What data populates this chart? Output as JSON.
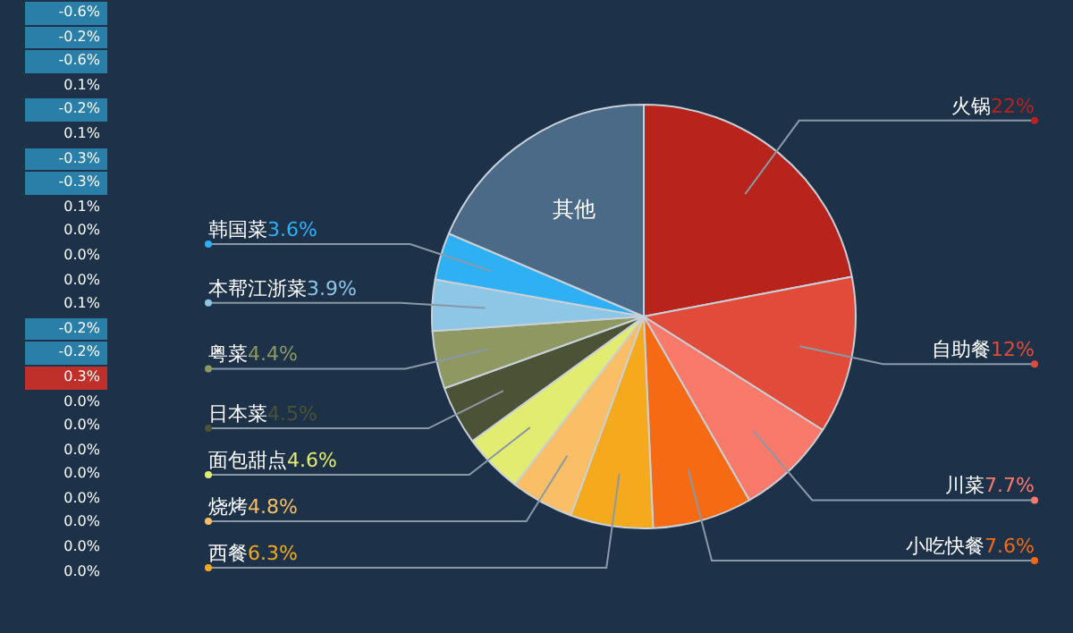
{
  "chart_data": [
    {
      "type": "other",
      "annotations": [
        "-0.6%",
        "-0.2%",
        "-0.6%",
        "0.1%",
        "-0.2%",
        "0.1%",
        "-0.3%",
        "-0.3%",
        "0.1%",
        "0.0%",
        "0.0%",
        "0.0%",
        "0.1%",
        "-0.2%",
        "-0.2%",
        "0.3%",
        "0.0%",
        "0.0%",
        "0.0%",
        "0.0%",
        "0.0%",
        "0.0%",
        "0.0%",
        "0.0%"
      ],
      "colors": [
        "#2a7fa8",
        "#2a7fa8",
        "#2a7fa8",
        null,
        "#2a7fa8",
        null,
        "#2a7fa8",
        "#2a7fa8",
        null,
        null,
        null,
        null,
        null,
        "#2a7fa8",
        "#2a7fa8",
        "#c0302a",
        null,
        null,
        null,
        null,
        null,
        null,
        null,
        null
      ]
    },
    {
      "type": "pie",
      "categories": [
        "火锅",
        "自助餐",
        "川菜",
        "小吃快餐",
        "西餐",
        "烧烤",
        "面包甜点",
        "日本菜",
        "粤菜",
        "本帮江浙菜",
        "韩国菜",
        "其他"
      ],
      "values": [
        22,
        12,
        7.7,
        7.6,
        6.3,
        4.8,
        4.6,
        4.5,
        4.4,
        3.9,
        3.6,
        18.6
      ],
      "value_labels": [
        "22%",
        "12%",
        "7.7%",
        "7.6%",
        "6.3%",
        "4.8%",
        "4.6%",
        "4.5%",
        "4.4%",
        "3.9%",
        "3.6%",
        null
      ],
      "colors": [
        "#b8231c",
        "#e04b3a",
        "#f97a6a",
        "#f56a12",
        "#f5a91c",
        "#f9be66",
        "#e1ec70",
        "#4b5236",
        "#8e9860",
        "#8ec6e6",
        "#2fb0f5",
        "#4a6a88"
      ]
    }
  ]
}
